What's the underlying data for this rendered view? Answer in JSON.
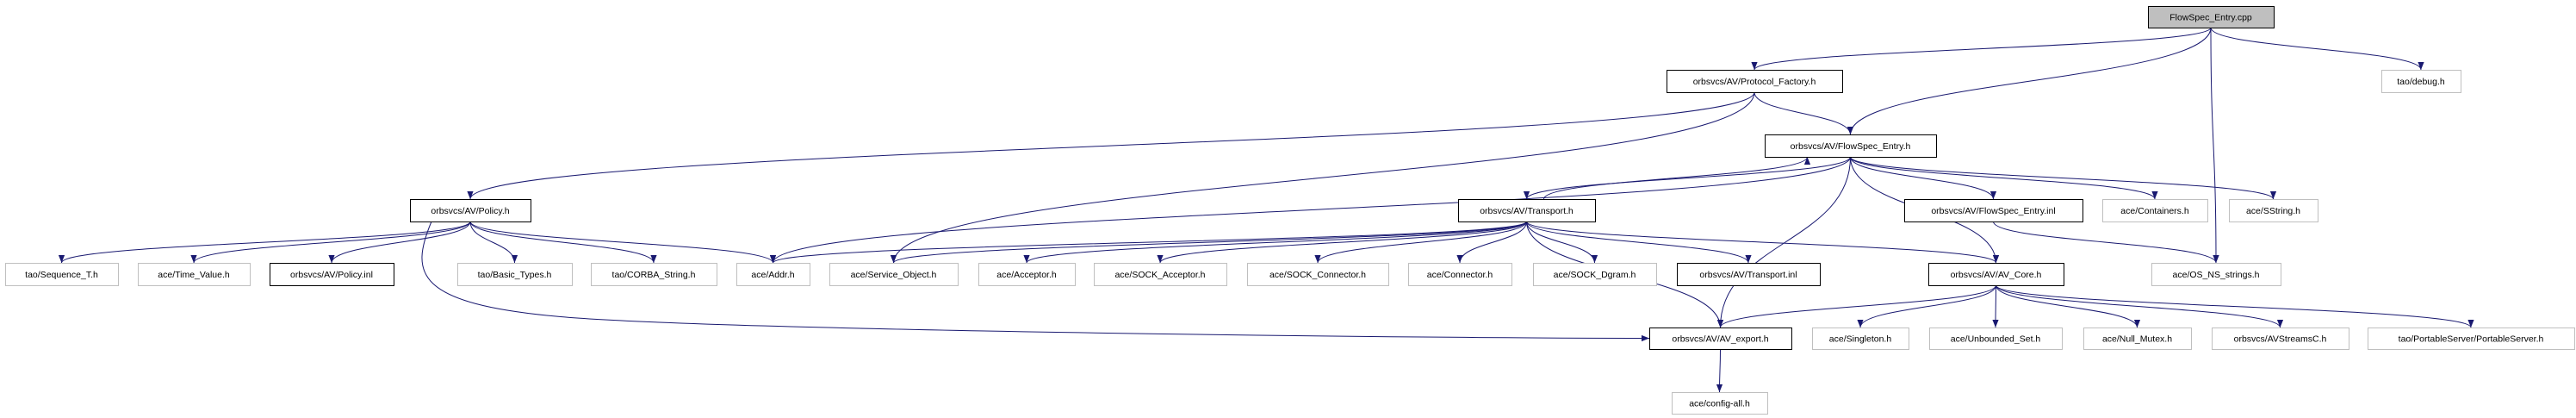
{
  "colors": {
    "edge": "#191970",
    "external_border": "#bfbfbf",
    "documented_border": "#000000",
    "root_fill": "#bfbfbf",
    "node_fill": "#ffffff"
  },
  "nodes": [
    {
      "id": "cpp",
      "label": "FlowSpec_Entry.cpp",
      "kind": "root"
    },
    {
      "id": "protocol_factory",
      "label": "orbsvcs/AV/Protocol_Factory.h",
      "kind": "documented"
    },
    {
      "id": "debug",
      "label": "tao/debug.h",
      "kind": "external"
    },
    {
      "id": "flowspec_h",
      "label": "orbsvcs/AV/FlowSpec_Entry.h",
      "kind": "documented"
    },
    {
      "id": "policy_h",
      "label": "orbsvcs/AV/Policy.h",
      "kind": "documented"
    },
    {
      "id": "transport_h",
      "label": "orbsvcs/AV/Transport.h",
      "kind": "documented"
    },
    {
      "id": "flowspec_inl",
      "label": "orbsvcs/AV/FlowSpec_Entry.inl",
      "kind": "documented"
    },
    {
      "id": "containers",
      "label": "ace/Containers.h",
      "kind": "external"
    },
    {
      "id": "sstring",
      "label": "ace/SString.h",
      "kind": "external"
    },
    {
      "id": "sequence_t",
      "label": "tao/Sequence_T.h",
      "kind": "external"
    },
    {
      "id": "time_value",
      "label": "ace/Time_Value.h",
      "kind": "external"
    },
    {
      "id": "policy_inl",
      "label": "orbsvcs/AV/Policy.inl",
      "kind": "documented"
    },
    {
      "id": "basic_types",
      "label": "tao/Basic_Types.h",
      "kind": "external"
    },
    {
      "id": "corba_string",
      "label": "tao/CORBA_String.h",
      "kind": "external"
    },
    {
      "id": "addr",
      "label": "ace/Addr.h",
      "kind": "external"
    },
    {
      "id": "service_object",
      "label": "ace/Service_Object.h",
      "kind": "external"
    },
    {
      "id": "acceptor",
      "label": "ace/Acceptor.h",
      "kind": "external"
    },
    {
      "id": "sock_acceptor",
      "label": "ace/SOCK_Acceptor.h",
      "kind": "external"
    },
    {
      "id": "sock_connector",
      "label": "ace/SOCK_Connector.h",
      "kind": "external"
    },
    {
      "id": "connector",
      "label": "ace/Connector.h",
      "kind": "external"
    },
    {
      "id": "sock_dgram",
      "label": "ace/SOCK_Dgram.h",
      "kind": "external"
    },
    {
      "id": "transport_inl",
      "label": "orbsvcs/AV/Transport.inl",
      "kind": "documented"
    },
    {
      "id": "av_core",
      "label": "orbsvcs/AV/AV_Core.h",
      "kind": "documented"
    },
    {
      "id": "os_ns_strings",
      "label": "ace/OS_NS_strings.h",
      "kind": "external"
    },
    {
      "id": "av_export",
      "label": "orbsvcs/AV/AV_export.h",
      "kind": "documented"
    },
    {
      "id": "singleton",
      "label": "ace/Singleton.h",
      "kind": "external"
    },
    {
      "id": "unbounded_set",
      "label": "ace/Unbounded_Set.h",
      "kind": "external"
    },
    {
      "id": "null_mutex",
      "label": "ace/Null_Mutex.h",
      "kind": "external"
    },
    {
      "id": "avstreamsc",
      "label": "orbsvcs/AVStreamsC.h",
      "kind": "external"
    },
    {
      "id": "portable_server",
      "label": "tao/PortableServer/PortableServer.h",
      "kind": "external"
    },
    {
      "id": "config_all",
      "label": "ace/config-all.h",
      "kind": "external"
    }
  ],
  "edges": [
    [
      "cpp",
      "protocol_factory"
    ],
    [
      "cpp",
      "flowspec_h"
    ],
    [
      "cpp",
      "debug"
    ],
    [
      "cpp",
      "os_ns_strings"
    ],
    [
      "protocol_factory",
      "flowspec_h"
    ],
    [
      "protocol_factory",
      "policy_h"
    ],
    [
      "protocol_factory",
      "service_object"
    ],
    [
      "flowspec_h",
      "transport_h"
    ],
    [
      "flowspec_h",
      "addr"
    ],
    [
      "flowspec_h",
      "flowspec_inl"
    ],
    [
      "flowspec_h",
      "containers"
    ],
    [
      "flowspec_h",
      "sstring"
    ],
    [
      "flowspec_h",
      "av_core"
    ],
    [
      "flowspec_h",
      "av_export"
    ],
    [
      "transport_h",
      "flowspec_h"
    ],
    [
      "transport_h",
      "addr"
    ],
    [
      "transport_h",
      "service_object"
    ],
    [
      "transport_h",
      "acceptor"
    ],
    [
      "transport_h",
      "sock_acceptor"
    ],
    [
      "transport_h",
      "sock_connector"
    ],
    [
      "transport_h",
      "connector"
    ],
    [
      "transport_h",
      "sock_dgram"
    ],
    [
      "transport_h",
      "transport_inl"
    ],
    [
      "transport_h",
      "av_core"
    ],
    [
      "transport_h",
      "av_export"
    ],
    [
      "policy_h",
      "sequence_t"
    ],
    [
      "policy_h",
      "time_value"
    ],
    [
      "policy_h",
      "policy_inl"
    ],
    [
      "policy_h",
      "basic_types"
    ],
    [
      "policy_h",
      "corba_string"
    ],
    [
      "policy_h",
      "addr"
    ],
    [
      "policy_h",
      "av_export"
    ],
    [
      "flowspec_inl",
      "os_ns_strings"
    ],
    [
      "av_core",
      "av_export"
    ],
    [
      "av_core",
      "singleton"
    ],
    [
      "av_core",
      "unbounded_set"
    ],
    [
      "av_core",
      "null_mutex"
    ],
    [
      "av_core",
      "avstreamsc"
    ],
    [
      "av_core",
      "portable_server"
    ],
    [
      "av_export",
      "config_all"
    ]
  ]
}
